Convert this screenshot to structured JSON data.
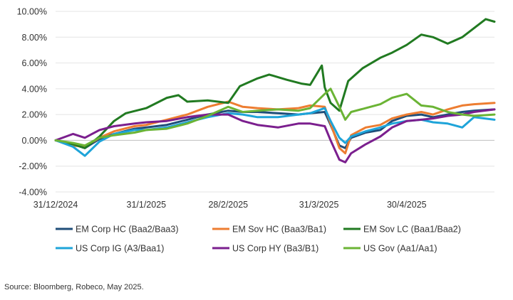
{
  "chart_data": {
    "type": "line",
    "title": "",
    "xlabel": "",
    "ylabel": "",
    "ylim": [
      -4,
      10
    ],
    "y_ticks": [
      -4,
      -2,
      0,
      2,
      4,
      6,
      8,
      10
    ],
    "y_tick_labels": [
      "-4.00%",
      "-2.00%",
      "0.00%",
      "2.00%",
      "4.00%",
      "6.00%",
      "8.00%",
      "10.00%"
    ],
    "x_range": [
      "2024-12-31",
      "2025-05-30"
    ],
    "x_ticks": [
      {
        "date": "2024-12-31",
        "label": "31/12/2024"
      },
      {
        "date": "2025-01-31",
        "label": "31/1/2025"
      },
      {
        "date": "2025-02-28",
        "label": "28/2/2025"
      },
      {
        "date": "2025-03-31",
        "label": "31/3/2025"
      },
      {
        "date": "2025-04-30",
        "label": "30/4/2025"
      }
    ],
    "legend_position": "bottom",
    "series": [
      {
        "name": "EM Corp HC (Baa2/Baa3)",
        "color": "#1f4e79",
        "x": [
          "2024-12-31",
          "2025-01-06",
          "2025-01-10",
          "2025-01-15",
          "2025-01-20",
          "2025-01-27",
          "2025-01-31",
          "2025-02-07",
          "2025-02-14",
          "2025-02-21",
          "2025-02-28",
          "2025-03-05",
          "2025-03-10",
          "2025-03-17",
          "2025-03-24",
          "2025-03-28",
          "2025-04-02",
          "2025-04-04",
          "2025-04-07",
          "2025-04-09",
          "2025-04-11",
          "2025-04-16",
          "2025-04-21",
          "2025-04-25",
          "2025-04-30",
          "2025-05-05",
          "2025-05-09",
          "2025-05-14",
          "2025-05-19",
          "2025-05-23",
          "2025-05-30"
        ],
        "y": [
          0,
          -0.3,
          -0.6,
          0.1,
          0.5,
          0.9,
          1.0,
          1.2,
          1.6,
          2.0,
          2.3,
          2.2,
          2.2,
          2.1,
          2.0,
          2.1,
          2.2,
          1.2,
          -0.4,
          -0.6,
          0.2,
          0.6,
          0.8,
          1.5,
          1.9,
          2.0,
          1.8,
          2.0,
          2.2,
          2.3,
          2.4
        ]
      },
      {
        "name": "EM Sov HC (Baa3/Ba1)",
        "color": "#ed7d31",
        "x": [
          "2024-12-31",
          "2025-01-06",
          "2025-01-10",
          "2025-01-15",
          "2025-01-20",
          "2025-01-27",
          "2025-01-31",
          "2025-02-07",
          "2025-02-14",
          "2025-02-21",
          "2025-02-28",
          "2025-03-05",
          "2025-03-10",
          "2025-03-17",
          "2025-03-24",
          "2025-03-28",
          "2025-04-02",
          "2025-04-04",
          "2025-04-07",
          "2025-04-09",
          "2025-04-11",
          "2025-04-16",
          "2025-04-21",
          "2025-04-25",
          "2025-04-30",
          "2025-05-05",
          "2025-05-09",
          "2025-05-14",
          "2025-05-19",
          "2025-05-23",
          "2025-05-30"
        ],
        "y": [
          0,
          -0.4,
          -0.5,
          0.2,
          0.7,
          1.1,
          1.2,
          1.6,
          2.0,
          2.6,
          3.0,
          2.6,
          2.5,
          2.4,
          2.5,
          2.7,
          2.6,
          1.3,
          -0.6,
          -1.0,
          0.4,
          1.0,
          1.2,
          1.7,
          2.0,
          2.2,
          2.0,
          2.4,
          2.7,
          2.8,
          2.9
        ]
      },
      {
        "name": "EM Sov LC (Baa1/Baa2)",
        "color": "#217a21",
        "x": [
          "2024-12-31",
          "2025-01-06",
          "2025-01-10",
          "2025-01-15",
          "2025-01-20",
          "2025-01-24",
          "2025-01-31",
          "2025-02-07",
          "2025-02-11",
          "2025-02-14",
          "2025-02-21",
          "2025-02-28",
          "2025-03-04",
          "2025-03-10",
          "2025-03-14",
          "2025-03-20",
          "2025-03-25",
          "2025-03-28",
          "2025-04-01",
          "2025-04-02",
          "2025-04-04",
          "2025-04-07",
          "2025-04-10",
          "2025-04-15",
          "2025-04-21",
          "2025-04-25",
          "2025-04-30",
          "2025-05-05",
          "2025-05-09",
          "2025-05-14",
          "2025-05-19",
          "2025-05-23",
          "2025-05-27",
          "2025-05-30"
        ],
        "y": [
          0,
          -0.3,
          -0.6,
          0.3,
          1.5,
          2.1,
          2.5,
          3.3,
          3.5,
          3.0,
          3.1,
          2.9,
          4.2,
          4.8,
          5.1,
          4.7,
          4.4,
          4.3,
          5.8,
          4.1,
          2.9,
          2.3,
          4.6,
          5.6,
          6.4,
          6.8,
          7.4,
          8.2,
          8.0,
          7.5,
          8.0,
          8.7,
          9.4,
          9.2
        ]
      },
      {
        "name": "US Corp IG (A3/Baa1)",
        "color": "#1ea4d9",
        "x": [
          "2024-12-31",
          "2025-01-06",
          "2025-01-10",
          "2025-01-15",
          "2025-01-20",
          "2025-01-27",
          "2025-01-31",
          "2025-02-07",
          "2025-02-14",
          "2025-02-21",
          "2025-02-28",
          "2025-03-05",
          "2025-03-10",
          "2025-03-17",
          "2025-03-24",
          "2025-03-28",
          "2025-04-02",
          "2025-04-04",
          "2025-04-07",
          "2025-04-09",
          "2025-04-11",
          "2025-04-16",
          "2025-04-21",
          "2025-04-25",
          "2025-04-30",
          "2025-05-05",
          "2025-05-09",
          "2025-05-14",
          "2025-05-19",
          "2025-05-23",
          "2025-05-30"
        ],
        "y": [
          0,
          -0.5,
          -1.2,
          -0.1,
          0.5,
          0.8,
          0.8,
          1.0,
          1.4,
          1.8,
          2.1,
          2.0,
          1.8,
          1.8,
          2.0,
          2.1,
          2.5,
          1.5,
          0.2,
          -0.2,
          0.3,
          0.7,
          1.0,
          1.3,
          1.5,
          1.6,
          1.4,
          1.3,
          1.0,
          1.8,
          1.6
        ]
      },
      {
        "name": "US Corp HY (Ba3/B1)",
        "color": "#7b1f8e",
        "x": [
          "2024-12-31",
          "2025-01-06",
          "2025-01-10",
          "2025-01-15",
          "2025-01-20",
          "2025-01-27",
          "2025-01-31",
          "2025-02-07",
          "2025-02-14",
          "2025-02-21",
          "2025-02-28",
          "2025-03-05",
          "2025-03-10",
          "2025-03-17",
          "2025-03-24",
          "2025-03-28",
          "2025-04-02",
          "2025-04-04",
          "2025-04-07",
          "2025-04-09",
          "2025-04-11",
          "2025-04-16",
          "2025-04-21",
          "2025-04-25",
          "2025-04-30",
          "2025-05-05",
          "2025-05-09",
          "2025-05-14",
          "2025-05-19",
          "2025-05-23",
          "2025-05-30"
        ],
        "y": [
          0,
          0.5,
          0.2,
          0.8,
          1.1,
          1.3,
          1.4,
          1.5,
          1.8,
          2.0,
          2.0,
          1.5,
          1.2,
          1.0,
          1.3,
          1.3,
          1.1,
          0.0,
          -1.5,
          -1.7,
          -1.0,
          -0.3,
          0.3,
          1.0,
          1.5,
          1.6,
          1.7,
          1.9,
          2.0,
          2.2,
          2.4
        ]
      },
      {
        "name": "US Gov (Aa1/Aa1)",
        "color": "#6bb435",
        "x": [
          "2024-12-31",
          "2025-01-06",
          "2025-01-10",
          "2025-01-15",
          "2025-01-20",
          "2025-01-27",
          "2025-01-31",
          "2025-02-07",
          "2025-02-14",
          "2025-02-21",
          "2025-02-28",
          "2025-03-05",
          "2025-03-10",
          "2025-03-17",
          "2025-03-24",
          "2025-03-28",
          "2025-04-02",
          "2025-04-04",
          "2025-04-07",
          "2025-04-09",
          "2025-04-11",
          "2025-04-16",
          "2025-04-21",
          "2025-04-25",
          "2025-04-30",
          "2025-05-05",
          "2025-05-09",
          "2025-05-14",
          "2025-05-19",
          "2025-05-23",
          "2025-05-30"
        ],
        "y": [
          0,
          -0.2,
          -0.4,
          0.2,
          0.4,
          0.6,
          0.8,
          0.9,
          1.3,
          1.9,
          2.6,
          2.2,
          2.3,
          2.4,
          2.3,
          2.5,
          3.6,
          4.0,
          2.6,
          1.6,
          2.2,
          2.5,
          2.8,
          3.3,
          3.6,
          2.7,
          2.6,
          2.2,
          2.0,
          1.9,
          2.0
        ]
      }
    ]
  },
  "source_text": "Source: Bloomberg, Robeco, May 2025."
}
